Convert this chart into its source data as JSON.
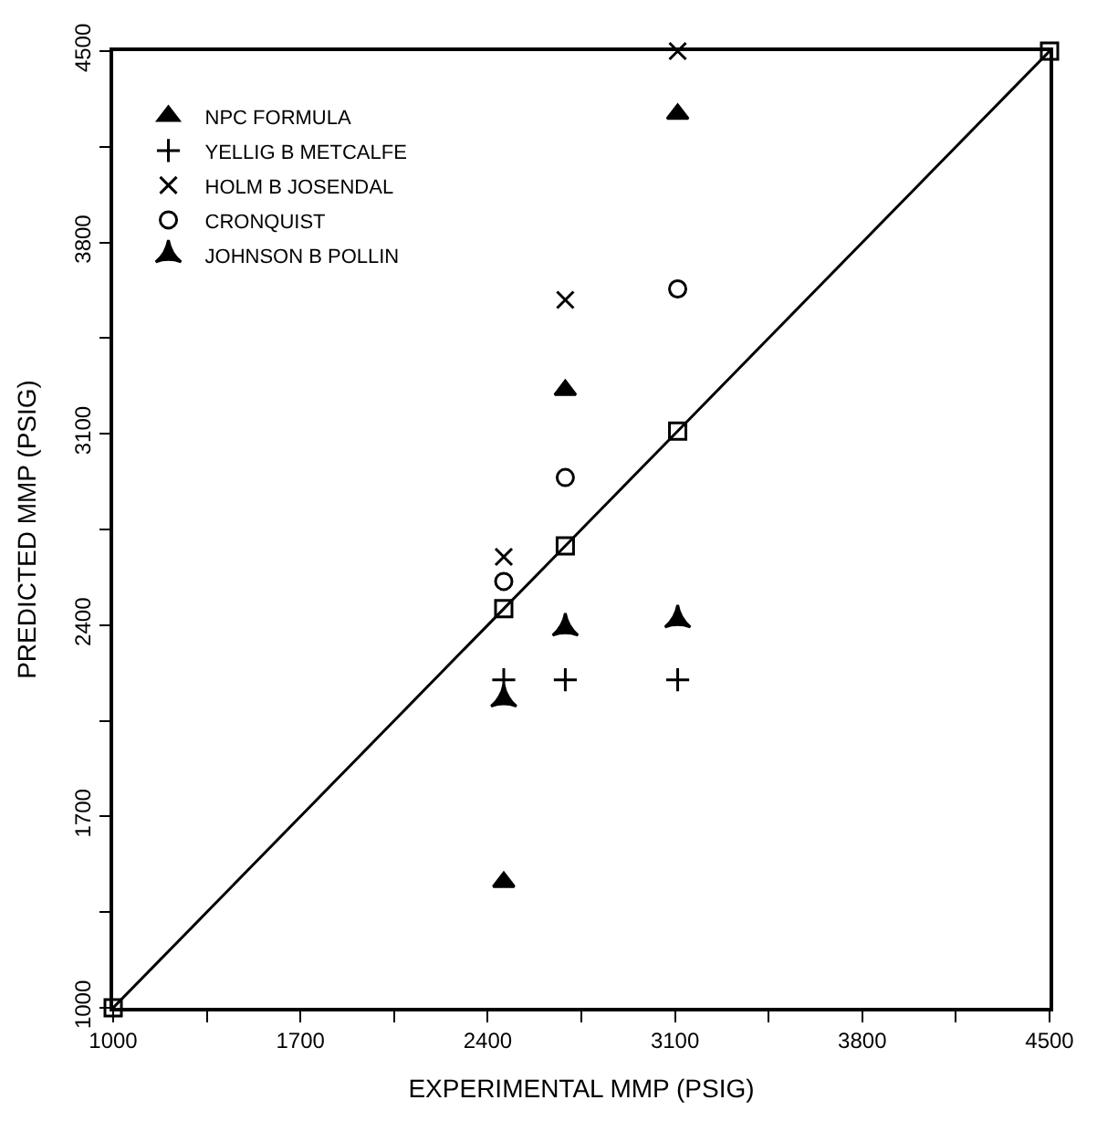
{
  "chart_data": {
    "type": "scatter",
    "xlabel": "EXPERIMENTAL MMP (PSIG)",
    "ylabel": "PREDICTED MMP (PSIG)",
    "xlim": [
      1000,
      4500
    ],
    "ylim": [
      1000,
      4500
    ],
    "xticks": [
      1000,
      {
        "value": 1350,
        "label": null
      },
      1700,
      {
        "value": 2050,
        "label": null
      },
      2400,
      {
        "value": 2750,
        "label": null
      },
      3100,
      {
        "value": 3450,
        "label": null
      },
      3800,
      {
        "value": 4150,
        "label": null
      },
      4500
    ],
    "yticks": [
      1000,
      {
        "value": 1350,
        "label": null
      },
      1700,
      {
        "value": 2050,
        "label": null
      },
      2400,
      {
        "value": 2750,
        "label": null
      },
      3100,
      {
        "value": 3450,
        "label": null
      },
      3800,
      {
        "value": 4150,
        "label": null
      },
      4500
    ],
    "legend": "top left",
    "series": [
      {
        "name": "NPC FORMULA",
        "color": "#000000",
        "marker": "triangle",
        "x": [
          2460,
          2690,
          3110
        ],
        "values": [
          1460,
          3260,
          4270
        ]
      },
      {
        "name": "YELLIG B METCALFE",
        "color": "#000000",
        "marker": "cross",
        "x": [
          2460,
          2690,
          3110
        ],
        "values": [
          2200,
          2200,
          2200
        ]
      },
      {
        "name": "HOLM B JOSENDAL",
        "color": "#000000",
        "marker": "x",
        "x": [
          2460,
          2690,
          3110
        ],
        "values": [
          2650,
          3590,
          4500
        ]
      },
      {
        "name": "CRONQUIST",
        "color": "#000000",
        "marker": "circle",
        "x": [
          2460,
          2690,
          3110
        ],
        "values": [
          2560,
          2940,
          3630
        ]
      },
      {
        "name": "JOHNSON B POLLIN",
        "color": "#000000",
        "marker": "star",
        "x": [
          2460,
          2690,
          3110
        ],
        "values": [
          2130,
          2390,
          2420
        ]
      },
      {
        "type": "line",
        "color": "#000000",
        "marker": "square",
        "x": [
          1000,
          2460,
          2690,
          3110,
          4500
        ],
        "values": [
          1000,
          2460,
          2690,
          3110,
          4500
        ]
      }
    ]
  }
}
